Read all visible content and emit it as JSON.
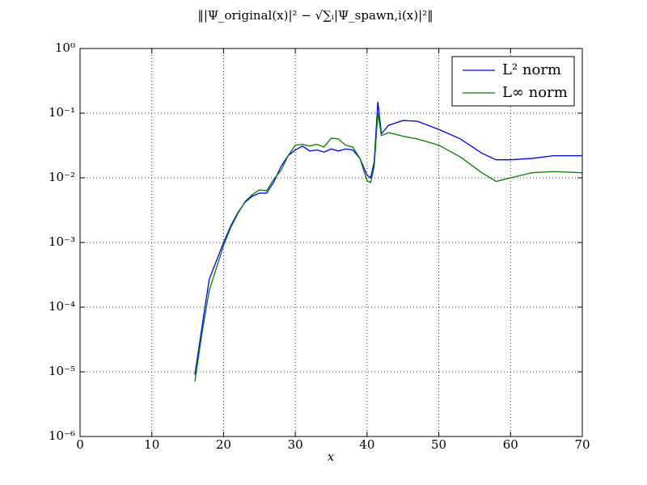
{
  "chart_data": {
    "type": "line",
    "title": "‖|Ψ_original(x)|² − √∑ᵢ|Ψ_spawn,i(x)|²‖",
    "xlabel": "x",
    "x": [
      16,
      17,
      18,
      20,
      21,
      22,
      23,
      24,
      25,
      26,
      27,
      28,
      29,
      30,
      31,
      32,
      33,
      34,
      35,
      36,
      37,
      38,
      39,
      40,
      40.5,
      41,
      41.5,
      42,
      43,
      45,
      47,
      50,
      53,
      56,
      58,
      60,
      63,
      66,
      70
    ],
    "series": [
      {
        "name": "L² norm",
        "color": "#0000ff",
        "values": [
          9e-06,
          5e-05,
          0.00027,
          0.001,
          0.0018,
          0.0029,
          0.0042,
          0.0052,
          0.0058,
          0.0058,
          0.0086,
          0.015,
          0.022,
          0.027,
          0.031,
          0.026,
          0.027,
          0.025,
          0.028,
          0.026,
          0.028,
          0.027,
          0.02,
          0.011,
          0.01,
          0.018,
          0.15,
          0.048,
          0.065,
          0.077,
          0.075,
          0.056,
          0.04,
          0.024,
          0.019,
          0.019,
          0.02,
          0.022,
          0.022
        ]
      },
      {
        "name": "L∞ norm",
        "color": "#008000",
        "values": [
          7e-06,
          4e-05,
          0.00018,
          0.0009,
          0.0017,
          0.0028,
          0.0043,
          0.0055,
          0.0065,
          0.0063,
          0.0095,
          0.013,
          0.022,
          0.032,
          0.033,
          0.031,
          0.033,
          0.03,
          0.041,
          0.04,
          0.032,
          0.03,
          0.02,
          0.009,
          0.0085,
          0.015,
          0.1,
          0.045,
          0.05,
          0.044,
          0.04,
          0.032,
          0.021,
          0.012,
          0.0088,
          0.01,
          0.012,
          0.0125,
          0.012
        ]
      }
    ],
    "xlim": [
      0,
      70
    ],
    "xticks": [
      0,
      10,
      20,
      30,
      40,
      50,
      60,
      70
    ],
    "ylim": [
      1e-06,
      1
    ],
    "ylog": true,
    "yticks": [
      {
        "value": 1e-06,
        "label": "10⁻⁶"
      },
      {
        "value": 1e-05,
        "label": "10⁻⁵"
      },
      {
        "value": 0.0001,
        "label": "10⁻⁴"
      },
      {
        "value": 0.001,
        "label": "10⁻³"
      },
      {
        "value": 0.01,
        "label": "10⁻²"
      },
      {
        "value": 0.1,
        "label": "10⁻¹"
      },
      {
        "value": 1,
        "label": "10⁰"
      }
    ],
    "grid": true,
    "legend": "upper right"
  }
}
